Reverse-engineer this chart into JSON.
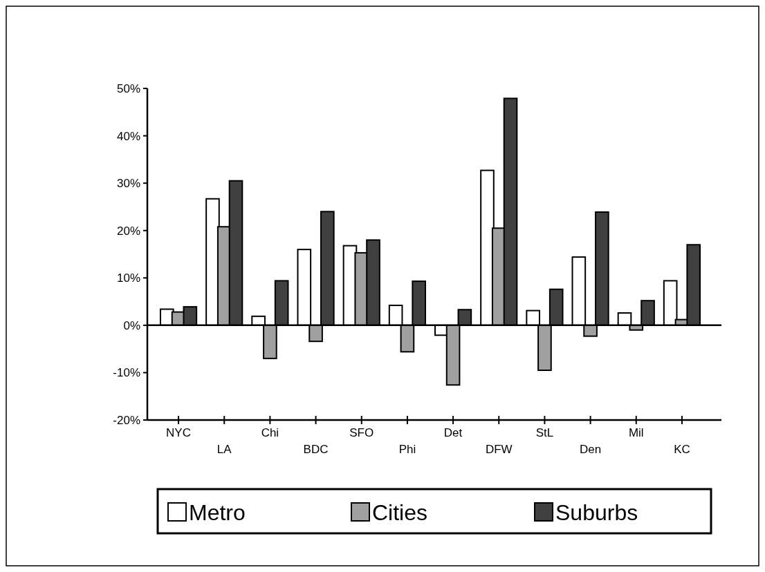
{
  "chart_data": {
    "type": "bar",
    "categories": [
      "NYC",
      "LA",
      "Chi",
      "BDC",
      "SFO",
      "Phi",
      "Det",
      "DFW",
      "StL",
      "Den",
      "Mil",
      "KC"
    ],
    "series": [
      {
        "name": "Metro",
        "color": "#ffffff",
        "values": [
          3.4,
          26.7,
          1.9,
          16.0,
          16.8,
          4.2,
          -2.1,
          32.7,
          3.1,
          14.4,
          2.6,
          9.4
        ]
      },
      {
        "name": "Cities",
        "color": "#a0a0a0",
        "values": [
          2.8,
          20.8,
          -7.0,
          -3.4,
          15.3,
          -5.6,
          -12.6,
          20.5,
          -9.5,
          -2.3,
          -1.0,
          1.2
        ]
      },
      {
        "name": "Suburbs",
        "color": "#404040",
        "values": [
          3.9,
          30.5,
          9.4,
          24.0,
          18.0,
          9.3,
          3.3,
          47.9,
          7.6,
          23.9,
          5.2,
          17.0
        ]
      }
    ],
    "ylim": [
      -20,
      50
    ],
    "yticks": [
      {
        "value": -20,
        "label": "-20%"
      },
      {
        "value": -10,
        "label": "-10%"
      },
      {
        "value": 0,
        "label": "0%"
      },
      {
        "value": 10,
        "label": "10%"
      },
      {
        "value": 20,
        "label": "20%"
      },
      {
        "value": 30,
        "label": "30%"
      },
      {
        "value": 40,
        "label": "40%"
      },
      {
        "value": 50,
        "label": "50%"
      }
    ],
    "legend": "bottom"
  }
}
